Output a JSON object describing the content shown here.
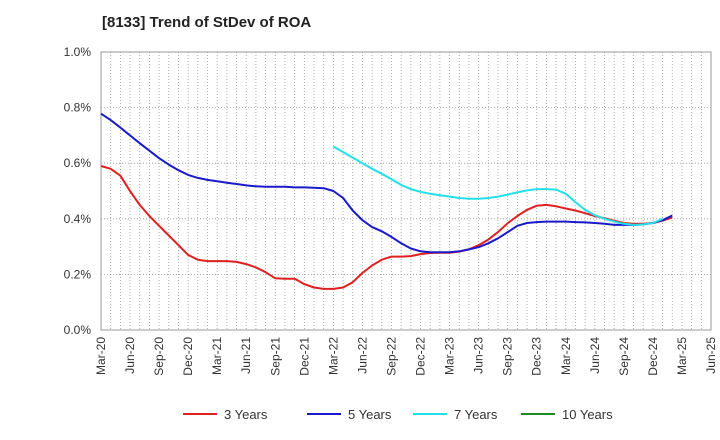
{
  "chart_data": {
    "type": "line",
    "title": "[8133]  Trend of StDev of ROA",
    "xlabel": "",
    "ylabel": "",
    "ylim": [
      0,
      1.0
    ],
    "y_ticks": [
      "0.0%",
      "0.2%",
      "0.4%",
      "0.6%",
      "0.8%",
      "1.0%"
    ],
    "x_ticks": [
      "Mar-20",
      "Jun-20",
      "Sep-20",
      "Dec-20",
      "Mar-21",
      "Jun-21",
      "Sep-21",
      "Dec-21",
      "Mar-22",
      "Jun-22",
      "Sep-22",
      "Dec-22",
      "Mar-23",
      "Jun-23",
      "Sep-23",
      "Dec-23",
      "Mar-24",
      "Jun-24",
      "Sep-24",
      "Dec-24",
      "Mar-25",
      "Jun-25"
    ],
    "grid": true,
    "legend_position": "bottom",
    "series": [
      {
        "name": "3 Years",
        "color": "#e02020",
        "start_index": 0,
        "values": [
          0.59,
          0.58,
          0.555,
          0.5,
          0.45,
          0.41,
          0.375,
          0.34,
          0.305,
          0.27,
          0.253,
          0.248,
          0.248,
          0.248,
          0.245,
          0.237,
          0.225,
          0.208,
          0.186,
          0.184,
          0.184,
          0.165,
          0.153,
          0.148,
          0.148,
          0.153,
          0.172,
          0.205,
          0.232,
          0.253,
          0.264,
          0.264,
          0.266,
          0.273,
          0.277,
          0.278,
          0.278,
          0.282,
          0.29,
          0.305,
          0.325,
          0.352,
          0.384,
          0.41,
          0.432,
          0.447,
          0.45,
          0.445,
          0.437,
          0.43,
          0.42,
          0.41,
          0.402,
          0.393,
          0.385,
          0.382,
          0.382,
          0.385,
          0.393,
          0.405
        ]
      },
      {
        "name": "5 Years",
        "color": "#1a1acc",
        "start_index": 0,
        "values": [
          0.778,
          0.755,
          0.728,
          0.7,
          0.672,
          0.645,
          0.618,
          0.595,
          0.575,
          0.558,
          0.547,
          0.54,
          0.535,
          0.53,
          0.525,
          0.52,
          0.517,
          0.515,
          0.515,
          0.515,
          0.513,
          0.513,
          0.512,
          0.51,
          0.5,
          0.475,
          0.43,
          0.395,
          0.37,
          0.355,
          0.335,
          0.312,
          0.293,
          0.283,
          0.28,
          0.28,
          0.28,
          0.283,
          0.29,
          0.298,
          0.312,
          0.33,
          0.352,
          0.375,
          0.385,
          0.388,
          0.39,
          0.39,
          0.39,
          0.388,
          0.387,
          0.385,
          0.382,
          0.378,
          0.378,
          0.378,
          0.38,
          0.385,
          0.395,
          0.412
        ]
      },
      {
        "name": "7 Years",
        "color": "#22e0e8",
        "start_index": 24,
        "values": [
          0.66,
          0.64,
          0.62,
          0.6,
          0.58,
          0.562,
          0.542,
          0.522,
          0.507,
          0.497,
          0.49,
          0.485,
          0.48,
          0.475,
          0.472,
          0.472,
          0.475,
          0.48,
          0.487,
          0.495,
          0.502,
          0.507,
          0.507,
          0.505,
          0.49,
          0.46,
          0.432,
          0.413,
          0.4,
          0.39,
          0.382,
          0.378,
          0.38,
          0.385,
          0.4
        ]
      },
      {
        "name": "10 Years",
        "color": "#228822",
        "start_index": 0,
        "values": []
      }
    ]
  }
}
